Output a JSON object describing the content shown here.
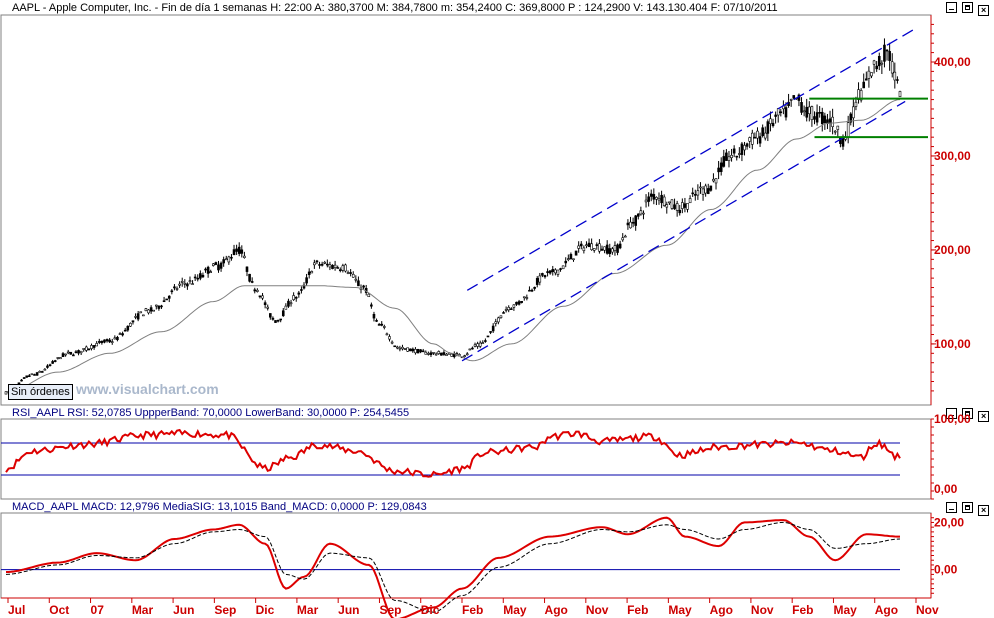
{
  "header": {
    "symbol": "AAPL",
    "text": "AAPL - Apple Computer, Inc. - Fin de día 1 semanas H: 22:00  A: 380,3700  M: 384,7800  m: 354,2400  C: 369,8000  P : 124,2900  V: 143.130.404  F: 07/10/2011"
  },
  "price_panel": {
    "no_orders_label": "Sin órdenes",
    "watermark": "www.visualchart.com",
    "y_ticks": [
      "400,00",
      "300,00",
      "200,00",
      "100,00"
    ],
    "y_tick_values": [
      400,
      300,
      200,
      100
    ],
    "y_range": [
      35,
      450
    ]
  },
  "rsi_panel": {
    "name": "RSI_AAPL",
    "text": "RSI_AAPL  RSI: 52,0785  UppperBand: 70,0000  LowerBand: 30,0000  P: 254,5455",
    "y_ticks": [
      "100,00",
      "0,00"
    ],
    "upper_band": 70,
    "lower_band": 30
  },
  "macd_panel": {
    "name": "MACD_AAPL",
    "text": "MACD_AAPL  MACD: 12,9796   MediaSIG: 13,1015   Band_MACD: 0,0000   P: 129,0843",
    "y_ticks": [
      "20,00",
      "0,00"
    ]
  },
  "x_axis": {
    "labels": [
      "Jul",
      "Oct",
      "07",
      "Mar",
      "Jun",
      "Sep",
      "Dic",
      "Mar",
      "Jun",
      "Sep",
      "Dic",
      "Feb",
      "May",
      "Ago",
      "Nov",
      "Feb",
      "May",
      "Ago",
      "Nov",
      "Feb",
      "May",
      "Ago",
      "Nov"
    ]
  },
  "colors": {
    "axis_text": "#cc0000",
    "axis_line": "#cc0000",
    "candles": "#000000",
    "moving_average": "#808080",
    "channel_lines": "#0000cc",
    "support_lines": "#008000",
    "rsi_line": "#dd0000",
    "macd_line": "#dd0000",
    "signal_line": "#000000",
    "band_line": "#0000aa"
  },
  "chart_data": [
    {
      "type": "candlestick",
      "title": "AAPL - Apple Computer, Inc. - Fin de día 1 semanas",
      "ylim": [
        35,
        450
      ],
      "x_start": "Jul",
      "x_end": "Nov",
      "anchors": [
        [
          0,
          48
        ],
        [
          10,
          67
        ],
        [
          25,
          90
        ],
        [
          40,
          103
        ],
        [
          55,
          135
        ],
        [
          70,
          165
        ],
        [
          82,
          183
        ],
        [
          90,
          200
        ],
        [
          96,
          160
        ],
        [
          104,
          125
        ],
        [
          112,
          150
        ],
        [
          120,
          185
        ],
        [
          130,
          182
        ],
        [
          138,
          160
        ],
        [
          144,
          120
        ],
        [
          152,
          95
        ],
        [
          165,
          90
        ],
        [
          176,
          88
        ],
        [
          182,
          98
        ],
        [
          195,
          140
        ],
        [
          210,
          175
        ],
        [
          225,
          205
        ],
        [
          235,
          200
        ],
        [
          242,
          230
        ],
        [
          250,
          258
        ],
        [
          260,
          245
        ],
        [
          270,
          265
        ],
        [
          280,
          300
        ],
        [
          290,
          320
        ],
        [
          300,
          345
        ],
        [
          305,
          360
        ],
        [
          310,
          345
        ],
        [
          318,
          338
        ],
        [
          323,
          318
        ],
        [
          330,
          368
        ],
        [
          335,
          395
        ],
        [
          340,
          410
        ],
        [
          345,
          370
        ]
      ],
      "ma_anchors": [
        [
          0,
          48
        ],
        [
          20,
          70
        ],
        [
          40,
          90
        ],
        [
          60,
          113
        ],
        [
          80,
          145
        ],
        [
          92,
          162
        ],
        [
          100,
          162
        ],
        [
          120,
          162
        ],
        [
          135,
          160
        ],
        [
          150,
          138
        ],
        [
          165,
          100
        ],
        [
          172,
          90
        ],
        [
          180,
          82
        ],
        [
          195,
          100
        ],
        [
          215,
          140
        ],
        [
          235,
          175
        ],
        [
          255,
          205
        ],
        [
          272,
          243
        ],
        [
          290,
          285
        ],
        [
          305,
          318
        ],
        [
          318,
          335
        ],
        [
          330,
          338
        ],
        [
          345,
          360
        ]
      ],
      "channel_upper": [
        [
          178,
          157
        ],
        [
          350,
          434
        ]
      ],
      "channel_lower": [
        [
          176,
          82
        ],
        [
          347,
          358
        ]
      ],
      "support_levels": [
        361,
        320
      ]
    },
    {
      "type": "line",
      "title": "RSI_AAPL",
      "ylim": [
        0,
        100
      ],
      "upper_band": 70,
      "lower_band": 30,
      "anchors": [
        [
          0,
          38
        ],
        [
          10,
          60
        ],
        [
          30,
          68
        ],
        [
          55,
          80
        ],
        [
          70,
          82
        ],
        [
          85,
          80
        ],
        [
          100,
          38
        ],
        [
          110,
          52
        ],
        [
          120,
          68
        ],
        [
          135,
          60
        ],
        [
          150,
          35
        ],
        [
          165,
          30
        ],
        [
          176,
          38
        ],
        [
          185,
          58
        ],
        [
          205,
          65
        ],
        [
          210,
          78
        ],
        [
          220,
          82
        ],
        [
          230,
          72
        ],
        [
          250,
          78
        ],
        [
          260,
          55
        ],
        [
          275,
          65
        ],
        [
          290,
          68
        ],
        [
          305,
          70
        ],
        [
          320,
          60
        ],
        [
          330,
          52
        ],
        [
          336,
          70
        ],
        [
          345,
          52
        ]
      ]
    },
    {
      "type": "line",
      "title": "MACD_AAPL",
      "ylim": [
        -12,
        24
      ],
      "series": [
        {
          "name": "MACD",
          "anchors": [
            [
              0,
              -1
            ],
            [
              20,
              3
            ],
            [
              35,
              7
            ],
            [
              50,
              4
            ],
            [
              65,
              13
            ],
            [
              80,
              17
            ],
            [
              90,
              19
            ],
            [
              100,
              11
            ],
            [
              108,
              -8
            ],
            [
              115,
              -3
            ],
            [
              125,
              11
            ],
            [
              140,
              2
            ],
            [
              150,
              -21
            ],
            [
              165,
              -16
            ],
            [
              176,
              -8
            ],
            [
              190,
              5
            ],
            [
              210,
              14
            ],
            [
              230,
              18
            ],
            [
              240,
              15
            ],
            [
              255,
              22
            ],
            [
              262,
              14
            ],
            [
              275,
              10
            ],
            [
              285,
              20
            ],
            [
              300,
              21
            ],
            [
              310,
              14
            ],
            [
              320,
              4
            ],
            [
              332,
              15
            ],
            [
              345,
              14
            ]
          ]
        },
        {
          "name": "MediaSIG",
          "anchors": [
            [
              0,
              -2
            ],
            [
              20,
              2
            ],
            [
              35,
              6
            ],
            [
              50,
              5
            ],
            [
              65,
              11
            ],
            [
              80,
              16
            ],
            [
              90,
              17
            ],
            [
              100,
              14
            ],
            [
              108,
              -2
            ],
            [
              115,
              -4
            ],
            [
              125,
              7
            ],
            [
              140,
              5
            ],
            [
              150,
              -13
            ],
            [
              165,
              -18
            ],
            [
              176,
              -11
            ],
            [
              190,
              1
            ],
            [
              210,
              11
            ],
            [
              230,
              17
            ],
            [
              240,
              16
            ],
            [
              255,
              19
            ],
            [
              262,
              17
            ],
            [
              275,
              13
            ],
            [
              285,
              17
            ],
            [
              300,
              20
            ],
            [
              310,
              17
            ],
            [
              320,
              9
            ],
            [
              332,
              11
            ],
            [
              345,
              13
            ]
          ]
        }
      ],
      "band": 0
    }
  ]
}
